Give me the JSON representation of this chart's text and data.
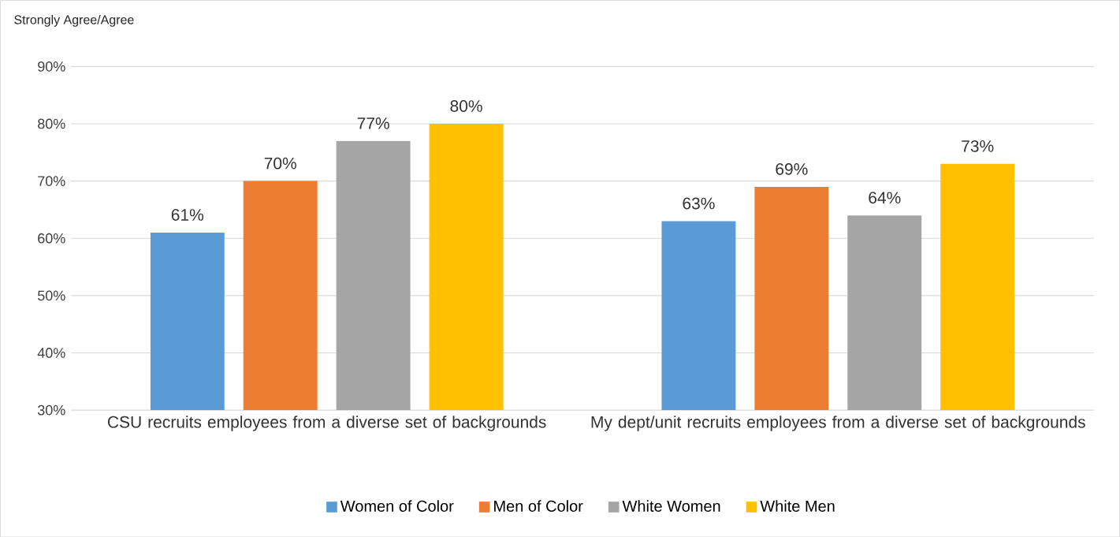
{
  "chart_data": {
    "type": "bar",
    "ylabel": "Strongly Agree/Agree",
    "categories": [
      "CSU recruits employees from a diverse set of backgrounds",
      "My dept/unit recruits employees from a diverse set of backgrounds"
    ],
    "series": [
      {
        "name": "Women of Color",
        "color": "#5b9bd5",
        "values": [
          61,
          63
        ],
        "value_labels": [
          "61%",
          "63%"
        ]
      },
      {
        "name": "Men of Color",
        "color": "#ed7d31",
        "values": [
          70,
          69
        ],
        "value_labels": [
          "70%",
          "69%"
        ]
      },
      {
        "name": "White Women",
        "color": "#a5a5a5",
        "values": [
          77,
          64
        ],
        "value_labels": [
          "77%",
          "64%"
        ]
      },
      {
        "name": "White Men",
        "color": "#ffc000",
        "values": [
          80,
          73
        ],
        "value_labels": [
          "80%",
          "73%"
        ]
      }
    ],
    "ylim": [
      30,
      90
    ],
    "yticks": [
      {
        "value": 30,
        "label": "30%"
      },
      {
        "value": 40,
        "label": "40%"
      },
      {
        "value": 50,
        "label": "50%"
      },
      {
        "value": 60,
        "label": "60%"
      },
      {
        "value": 70,
        "label": "70%"
      },
      {
        "value": 80,
        "label": "80%"
      },
      {
        "value": 90,
        "label": "90%"
      }
    ],
    "grid": "y",
    "legend": "bottom"
  }
}
